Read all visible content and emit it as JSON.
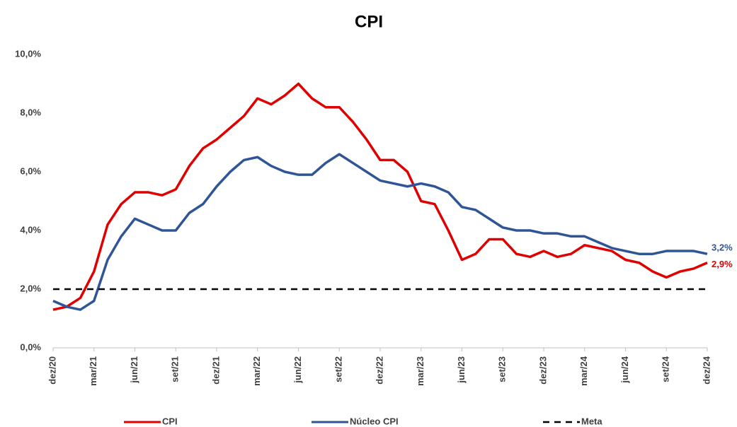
{
  "chart_data": {
    "type": "line",
    "title": "CPI",
    "categories": [
      "dez/20",
      null,
      null,
      "mar/21",
      null,
      null,
      "jun/21",
      null,
      null,
      "set/21",
      null,
      null,
      "dez/21",
      null,
      null,
      "mar/22",
      null,
      null,
      "jun/22",
      null,
      null,
      "set/22",
      null,
      null,
      "dez/22",
      null,
      null,
      "mar/23",
      null,
      null,
      "jun/23",
      null,
      null,
      "set/23",
      null,
      null,
      "dez/23",
      null,
      null,
      "mar/24",
      null,
      null,
      "jun/24",
      null,
      null,
      "set/24",
      null,
      null,
      "dez/24"
    ],
    "series": [
      {
        "name": "CPI",
        "color": "#e00000",
        "dashed": false,
        "values": [
          1.3,
          1.4,
          1.7,
          2.6,
          4.2,
          4.9,
          5.3,
          5.3,
          5.2,
          5.4,
          6.2,
          6.8,
          7.1,
          7.5,
          7.9,
          8.5,
          8.3,
          8.6,
          9.0,
          8.5,
          8.2,
          8.2,
          7.7,
          7.1,
          6.4,
          6.4,
          6.0,
          5.0,
          4.9,
          4.0,
          3.0,
          3.2,
          3.7,
          3.7,
          3.2,
          3.1,
          3.3,
          3.1,
          3.2,
          3.5,
          3.4,
          3.3,
          3.0,
          2.9,
          2.6,
          2.4,
          2.6,
          2.7,
          2.9
        ],
        "value_labels": [
          null,
          null,
          null,
          null,
          null,
          null,
          null,
          null,
          null,
          null,
          null,
          null,
          null,
          null,
          null,
          null,
          null,
          null,
          null,
          null,
          null,
          null,
          null,
          null,
          null,
          null,
          null,
          null,
          null,
          null,
          null,
          null,
          null,
          null,
          null,
          null,
          null,
          null,
          null,
          null,
          null,
          null,
          null,
          null,
          null,
          null,
          null,
          null,
          "2,9%"
        ]
      },
      {
        "name": "Núcleo CPI",
        "color": "#2f5597",
        "dashed": false,
        "values": [
          1.6,
          1.4,
          1.3,
          1.6,
          3.0,
          3.8,
          4.4,
          4.2,
          4.0,
          4.0,
          4.6,
          4.9,
          5.5,
          6.0,
          6.4,
          6.5,
          6.2,
          6.0,
          5.9,
          5.9,
          6.3,
          6.6,
          6.3,
          6.0,
          5.7,
          5.6,
          5.5,
          5.6,
          5.5,
          5.3,
          4.8,
          4.7,
          4.4,
          4.1,
          4.0,
          4.0,
          3.9,
          3.9,
          3.8,
          3.8,
          3.6,
          3.4,
          3.3,
          3.2,
          3.2,
          3.3,
          3.3,
          3.3,
          3.2
        ],
        "value_labels": [
          null,
          null,
          null,
          null,
          null,
          null,
          null,
          null,
          null,
          null,
          null,
          null,
          null,
          null,
          null,
          null,
          null,
          null,
          null,
          null,
          null,
          null,
          null,
          null,
          null,
          null,
          null,
          null,
          null,
          null,
          null,
          null,
          null,
          null,
          null,
          null,
          null,
          null,
          null,
          null,
          null,
          null,
          null,
          null,
          null,
          null,
          null,
          null,
          "3,2%"
        ]
      },
      {
        "name": "Meta",
        "color": "#000000",
        "dashed": true,
        "values": [
          2,
          2,
          2,
          2,
          2,
          2,
          2,
          2,
          2,
          2,
          2,
          2,
          2,
          2,
          2,
          2,
          2,
          2,
          2,
          2,
          2,
          2,
          2,
          2,
          2,
          2,
          2,
          2,
          2,
          2,
          2,
          2,
          2,
          2,
          2,
          2,
          2,
          2,
          2,
          2,
          2,
          2,
          2,
          2,
          2,
          2,
          2,
          2,
          2
        ]
      }
    ],
    "ylim": [
      0,
      10
    ],
    "yticks": [
      {
        "value": 0,
        "label": "0,0%"
      },
      {
        "value": 2,
        "label": "2,0%"
      },
      {
        "value": 4,
        "label": "4,0%"
      },
      {
        "value": 6,
        "label": "6,0%"
      },
      {
        "value": 8,
        "label": "8,0%"
      },
      {
        "value": 10,
        "label": "10,0%"
      }
    ],
    "grid": false,
    "legend": "bottom"
  }
}
